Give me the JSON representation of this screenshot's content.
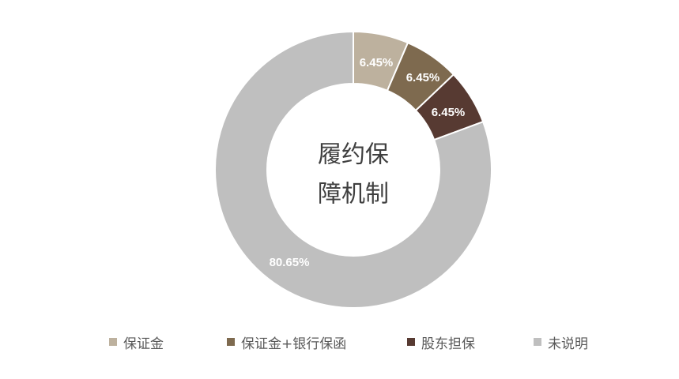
{
  "chart_data": {
    "type": "pie",
    "donut": true,
    "center_title": [
      "履约保",
      "障机制"
    ],
    "categories": [
      "保证金",
      "保证金+银行保函",
      "股东担保",
      "未说明"
    ],
    "values": [
      6.45,
      6.45,
      6.45,
      80.65
    ],
    "value_labels": [
      "6.45%",
      "6.45%",
      "6.45%",
      "80.65%"
    ],
    "colors": [
      "#bdb19e",
      "#7e6a4f",
      "#573a32",
      "#bfbfbf"
    ],
    "legend_position": "bottom"
  }
}
